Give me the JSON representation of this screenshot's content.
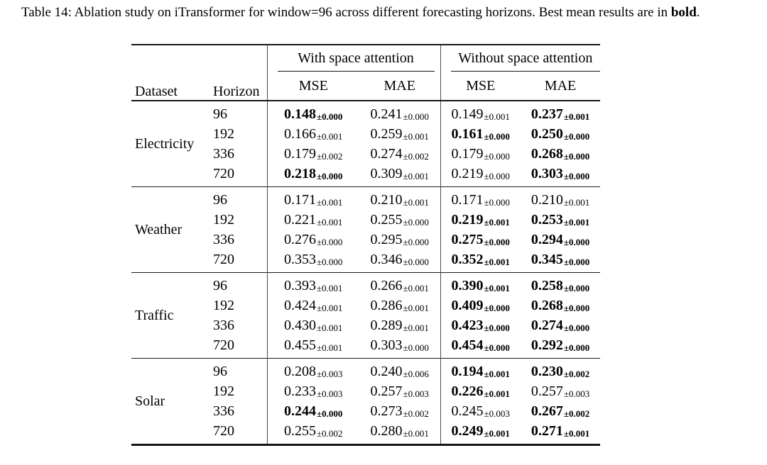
{
  "colors": {
    "text": "#000000",
    "rule": "#151515",
    "divider": "#4d4d4d"
  },
  "caption": {
    "text": "Table 14: Ablation study on iTransformer for window=96 across different forecasting horizons. Best mean results are in",
    "emph": "bold",
    "suffix": "."
  },
  "table": {
    "header": {
      "dataset": "Dataset",
      "horizon": "Horizon",
      "with_group": "With space attention",
      "without_group": "Without space attention",
      "mse": "MSE",
      "mae": "MAE"
    },
    "groups": [
      {
        "dataset": "Electricity",
        "rows": [
          {
            "horizon": "96",
            "values": [
              {
                "mean": "0.148",
                "pm": "±0.000",
                "bold": true
              },
              {
                "mean": "0.241",
                "pm": "±0.000",
                "bold": false
              },
              {
                "mean": "0.149",
                "pm": "±0.001",
                "bold": false
              },
              {
                "mean": "0.237",
                "pm": "±0.001",
                "bold": true
              }
            ]
          },
          {
            "horizon": "192",
            "values": [
              {
                "mean": "0.166",
                "pm": "±0.001",
                "bold": false
              },
              {
                "mean": "0.259",
                "pm": "±0.001",
                "bold": false
              },
              {
                "mean": "0.161",
                "pm": "±0.000",
                "bold": true
              },
              {
                "mean": "0.250",
                "pm": "±0.000",
                "bold": true
              }
            ]
          },
          {
            "horizon": "336",
            "values": [
              {
                "mean": "0.179",
                "pm": "±0.002",
                "bold": false
              },
              {
                "mean": "0.274",
                "pm": "±0.002",
                "bold": false
              },
              {
                "mean": "0.179",
                "pm": "±0.000",
                "bold": false
              },
              {
                "mean": "0.268",
                "pm": "±0.000",
                "bold": true
              }
            ]
          },
          {
            "horizon": "720",
            "values": [
              {
                "mean": "0.218",
                "pm": "±0.000",
                "bold": true
              },
              {
                "mean": "0.309",
                "pm": "±0.001",
                "bold": false
              },
              {
                "mean": "0.219",
                "pm": "±0.000",
                "bold": false
              },
              {
                "mean": "0.303",
                "pm": "±0.000",
                "bold": true
              }
            ]
          }
        ]
      },
      {
        "dataset": "Weather",
        "rows": [
          {
            "horizon": "96",
            "values": [
              {
                "mean": "0.171",
                "pm": "±0.001",
                "bold": false
              },
              {
                "mean": "0.210",
                "pm": "±0.001",
                "bold": false
              },
              {
                "mean": "0.171",
                "pm": "±0.000",
                "bold": false
              },
              {
                "mean": "0.210",
                "pm": "±0.001",
                "bold": false
              }
            ]
          },
          {
            "horizon": "192",
            "values": [
              {
                "mean": "0.221",
                "pm": "±0.001",
                "bold": false
              },
              {
                "mean": "0.255",
                "pm": "±0.000",
                "bold": false
              },
              {
                "mean": "0.219",
                "pm": "±0.001",
                "bold": true
              },
              {
                "mean": "0.253",
                "pm": "±0.001",
                "bold": true
              }
            ]
          },
          {
            "horizon": "336",
            "values": [
              {
                "mean": "0.276",
                "pm": "±0.000",
                "bold": false
              },
              {
                "mean": "0.295",
                "pm": "±0.000",
                "bold": false
              },
              {
                "mean": "0.275",
                "pm": "±0.000",
                "bold": true
              },
              {
                "mean": "0.294",
                "pm": "±0.000",
                "bold": true
              }
            ]
          },
          {
            "horizon": "720",
            "values": [
              {
                "mean": "0.353",
                "pm": "±0.000",
                "bold": false
              },
              {
                "mean": "0.346",
                "pm": "±0.000",
                "bold": false
              },
              {
                "mean": "0.352",
                "pm": "±0.001",
                "bold": true
              },
              {
                "mean": "0.345",
                "pm": "±0.000",
                "bold": true
              }
            ]
          }
        ]
      },
      {
        "dataset": "Traffic",
        "rows": [
          {
            "horizon": "96",
            "values": [
              {
                "mean": "0.393",
                "pm": "±0.001",
                "bold": false
              },
              {
                "mean": "0.266",
                "pm": "±0.001",
                "bold": false
              },
              {
                "mean": "0.390",
                "pm": "±0.001",
                "bold": true
              },
              {
                "mean": "0.258",
                "pm": "±0.000",
                "bold": true
              }
            ]
          },
          {
            "horizon": "192",
            "values": [
              {
                "mean": "0.424",
                "pm": "±0.001",
                "bold": false
              },
              {
                "mean": "0.286",
                "pm": "±0.001",
                "bold": false
              },
              {
                "mean": "0.409",
                "pm": "±0.000",
                "bold": true
              },
              {
                "mean": "0.268",
                "pm": "±0.000",
                "bold": true
              }
            ]
          },
          {
            "horizon": "336",
            "values": [
              {
                "mean": "0.430",
                "pm": "±0.001",
                "bold": false
              },
              {
                "mean": "0.289",
                "pm": "±0.001",
                "bold": false
              },
              {
                "mean": "0.423",
                "pm": "±0.000",
                "bold": true
              },
              {
                "mean": "0.274",
                "pm": "±0.000",
                "bold": true
              }
            ]
          },
          {
            "horizon": "720",
            "values": [
              {
                "mean": "0.455",
                "pm": "±0.001",
                "bold": false
              },
              {
                "mean": "0.303",
                "pm": "±0.000",
                "bold": false
              },
              {
                "mean": "0.454",
                "pm": "±0.000",
                "bold": true
              },
              {
                "mean": "0.292",
                "pm": "±0.000",
                "bold": true
              }
            ]
          }
        ]
      },
      {
        "dataset": "Solar",
        "rows": [
          {
            "horizon": "96",
            "values": [
              {
                "mean": "0.208",
                "pm": "±0.003",
                "bold": false
              },
              {
                "mean": "0.240",
                "pm": "±0.006",
                "bold": false
              },
              {
                "mean": "0.194",
                "pm": "±0.001",
                "bold": true
              },
              {
                "mean": "0.230",
                "pm": "±0.002",
                "bold": true
              }
            ]
          },
          {
            "horizon": "192",
            "values": [
              {
                "mean": "0.233",
                "pm": "±0.003",
                "bold": false
              },
              {
                "mean": "0.257",
                "pm": "±0.003",
                "bold": false
              },
              {
                "mean": "0.226",
                "pm": "±0.001",
                "bold": true
              },
              {
                "mean": "0.257",
                "pm": "±0.003",
                "bold": false
              }
            ]
          },
          {
            "horizon": "336",
            "values": [
              {
                "mean": "0.244",
                "pm": "±0.000",
                "bold": true
              },
              {
                "mean": "0.273",
                "pm": "±0.002",
                "bold": false
              },
              {
                "mean": "0.245",
                "pm": "±0.003",
                "bold": false
              },
              {
                "mean": "0.267",
                "pm": "±0.002",
                "bold": true
              }
            ]
          },
          {
            "horizon": "720",
            "values": [
              {
                "mean": "0.255",
                "pm": "±0.002",
                "bold": false
              },
              {
                "mean": "0.280",
                "pm": "±0.001",
                "bold": false
              },
              {
                "mean": "0.249",
                "pm": "±0.001",
                "bold": true
              },
              {
                "mean": "0.271",
                "pm": "±0.001",
                "bold": true
              }
            ]
          }
        ]
      }
    ]
  }
}
